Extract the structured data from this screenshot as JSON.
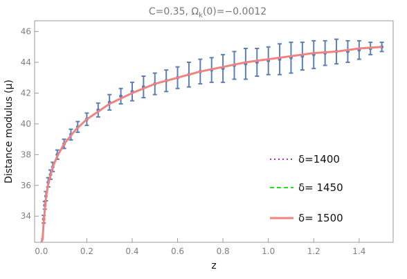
{
  "chart_data": {
    "type": "scatter",
    "title": "C=0.35, Ωk(0)=−0.0012",
    "title_parts": {
      "prefix": "C=0.35, Ω",
      "sub": "k",
      "suffix": "(0)=−0.0012"
    },
    "xlabel": "z",
    "ylabel": "Distance modulus (μ)",
    "xlim": [
      -0.03,
      1.55
    ],
    "ylim": [
      32.3,
      46.7
    ],
    "x_ticks": [
      "0.0",
      "0.2",
      "0.4",
      "0.6",
      "0.8",
      "1.0",
      "1.2",
      "1.4"
    ],
    "y_ticks": [
      "34",
      "36",
      "38",
      "40",
      "42",
      "44",
      "46"
    ],
    "grid": false,
    "legend_position": "lower-right, inside",
    "colors": {
      "data_points": "#5b7fb6",
      "delta_1400": "#b025c8",
      "delta_1450": "#1fe01f",
      "delta_1500": "#f0837d"
    },
    "data_series": {
      "name": "",
      "x": [
        0.01,
        0.015,
        0.02,
        0.03,
        0.04,
        0.05,
        0.07,
        0.1,
        0.13,
        0.16,
        0.2,
        0.25,
        0.3,
        0.35,
        0.4,
        0.45,
        0.5,
        0.55,
        0.6,
        0.65,
        0.7,
        0.75,
        0.8,
        0.85,
        0.9,
        0.95,
        1.0,
        1.05,
        1.1,
        1.15,
        1.2,
        1.25,
        1.3,
        1.35,
        1.4,
        1.45,
        1.5
      ],
      "y": [
        33.8,
        34.7,
        35.3,
        36.2,
        36.7,
        37.2,
        38.0,
        38.7,
        39.3,
        39.8,
        40.3,
        40.9,
        41.4,
        41.8,
        42.1,
        42.4,
        42.6,
        42.8,
        43.0,
        43.2,
        43.4,
        43.5,
        43.6,
        43.8,
        43.9,
        44.0,
        44.1,
        44.2,
        44.3,
        44.4,
        44.5,
        44.6,
        44.7,
        44.7,
        44.8,
        44.9,
        45.0
      ],
      "err": [
        0.25,
        0.25,
        0.3,
        0.3,
        0.3,
        0.3,
        0.3,
        0.3,
        0.35,
        0.35,
        0.4,
        0.45,
        0.5,
        0.5,
        0.6,
        0.7,
        0.7,
        0.7,
        0.7,
        0.8,
        0.8,
        0.8,
        0.9,
        0.9,
        1.0,
        0.9,
        0.9,
        1.0,
        1.0,
        0.9,
        0.9,
        0.8,
        0.8,
        0.7,
        0.6,
        0.4,
        0.3
      ]
    },
    "series": [
      {
        "name": "δ=1400",
        "style": "dotted",
        "x": [
          0.0,
          0.005,
          0.01,
          0.02,
          0.03,
          0.05,
          0.07,
          0.1,
          0.15,
          0.2,
          0.3,
          0.4,
          0.5,
          0.6,
          0.7,
          0.8,
          0.9,
          1.0,
          1.1,
          1.2,
          1.3,
          1.4,
          1.5
        ],
        "y": [
          32.3,
          32.5,
          33.6,
          35.2,
          36.1,
          37.2,
          37.9,
          38.7,
          39.6,
          40.3,
          41.3,
          42.0,
          42.6,
          43.0,
          43.4,
          43.7,
          44.0,
          44.2,
          44.4,
          44.6,
          44.7,
          44.9,
          45.0
        ]
      },
      {
        "name": "δ= 1450",
        "style": "dashed",
        "x": [
          0.0,
          0.005,
          0.01,
          0.02,
          0.03,
          0.05,
          0.07,
          0.1,
          0.15,
          0.2,
          0.3,
          0.4,
          0.5,
          0.6,
          0.7,
          0.8,
          0.9,
          1.0,
          1.1,
          1.2,
          1.3,
          1.4,
          1.5
        ],
        "y": [
          32.3,
          32.5,
          33.6,
          35.2,
          36.1,
          37.2,
          37.9,
          38.7,
          39.6,
          40.3,
          41.3,
          42.0,
          42.6,
          43.0,
          43.4,
          43.7,
          44.0,
          44.2,
          44.4,
          44.6,
          44.7,
          44.9,
          45.0
        ]
      },
      {
        "name": "δ= 1500",
        "style": "solid",
        "x": [
          0.0,
          0.005,
          0.01,
          0.02,
          0.03,
          0.05,
          0.07,
          0.1,
          0.15,
          0.2,
          0.3,
          0.4,
          0.5,
          0.6,
          0.7,
          0.8,
          0.9,
          1.0,
          1.1,
          1.2,
          1.3,
          1.4,
          1.5
        ],
        "y": [
          32.3,
          32.5,
          33.6,
          35.2,
          36.1,
          37.2,
          37.9,
          38.7,
          39.6,
          40.3,
          41.3,
          42.0,
          42.6,
          43.0,
          43.4,
          43.7,
          44.0,
          44.2,
          44.4,
          44.6,
          44.7,
          44.9,
          45.0
        ]
      }
    ]
  }
}
